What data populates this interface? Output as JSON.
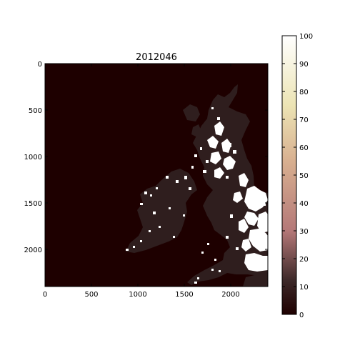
{
  "chart_data": {
    "type": "heatmap",
    "title": "2012046",
    "xlabel": "",
    "ylabel": "",
    "x_ticks": [
      0,
      500,
      1000,
      1500,
      2000
    ],
    "y_ticks": [
      0,
      500,
      1000,
      1500,
      2000
    ],
    "x_range": [
      0,
      2400
    ],
    "y_range": [
      0,
      2400
    ],
    "y_inverted": true,
    "grid": false,
    "colorbar": {
      "range": [
        0,
        100
      ],
      "ticks": [
        0,
        10,
        20,
        30,
        40,
        50,
        60,
        70,
        80,
        90,
        100
      ],
      "colormap": "pink",
      "stops": [
        "#1e0000",
        "#3c2828",
        "#b47878",
        "#e8d0a8",
        "#ffffff"
      ]
    },
    "background_color": "#1e0000",
    "land_color": "#2f1e1e",
    "snow_color": "#ffffff"
  }
}
